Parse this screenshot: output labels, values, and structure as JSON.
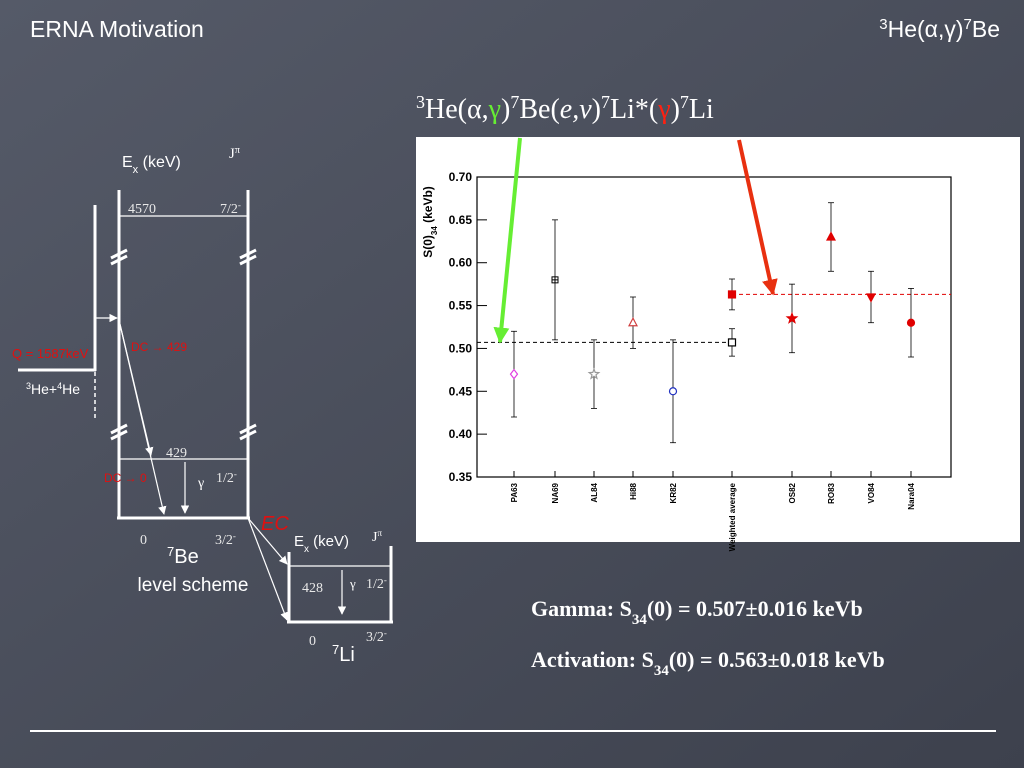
{
  "header": {
    "title": "ERNA Motivation",
    "reaction": [
      "3",
      "He(α,γ)",
      "7",
      "Be"
    ]
  },
  "reaction_chain": [
    "3",
    "He(α,",
    "γ",
    ")",
    "7",
    "Be(",
    "e,ν",
    ")",
    "7",
    "Li*(",
    "γ",
    ")",
    "7",
    "Li"
  ],
  "level_scheme_7be": {
    "ex_label": [
      "E",
      "x",
      " (keV)"
    ],
    "jpi_label": [
      "J",
      "π"
    ],
    "levels": [
      {
        "energy": "4570",
        "jpi": [
          "7/2",
          "-"
        ]
      },
      {
        "energy": "429",
        "jpi": [
          "1/2",
          "-"
        ]
      },
      {
        "energy": "0",
        "jpi": [
          "3/2",
          "-"
        ]
      }
    ],
    "q_value": "Q = 1587keV",
    "entrance": [
      "3",
      "He+",
      "4",
      "He"
    ],
    "transitions": [
      "DC → 429",
      "DC → 0"
    ],
    "gamma": "γ",
    "nucleus": [
      "7",
      "Be"
    ],
    "caption": "level scheme",
    "decay": "EC"
  },
  "level_scheme_7li": {
    "ex_label": [
      "E",
      "x",
      " (keV)"
    ],
    "jpi_label": [
      "J",
      "π"
    ],
    "levels": [
      {
        "energy": "428",
        "jpi": [
          "1/2",
          "-"
        ]
      },
      {
        "energy": "0",
        "jpi": [
          "3/2",
          "-"
        ]
      }
    ],
    "gamma": "γ",
    "nucleus": [
      "7",
      "Li"
    ]
  },
  "results": [
    [
      "Gamma: S",
      "34",
      "(0) = 0.507±0.016 keVb"
    ],
    [
      "Activation: S",
      "34",
      "(0) = 0.563±0.018 keVb"
    ]
  ],
  "chart_data": {
    "type": "errorbar",
    "y_label": [
      "S(0)",
      "34",
      " (keVb)"
    ],
    "categories": [
      "PA63",
      "NA69",
      "AL84",
      "Hi88",
      "KR82",
      "Weighted average",
      "OS82",
      "RO83",
      "VO84",
      "Nara04"
    ],
    "ylim": [
      0.35,
      0.7
    ],
    "yticks": [
      0.35,
      {
        "value": 0.4,
        "label": "0.40"
      },
      0.45,
      {
        "value": 0.5,
        "label": "0.50"
      },
      0.55,
      {
        "value": 0.6,
        "label": "0.60"
      },
      0.65,
      {
        "value": 0.7,
        "label": "0.70"
      }
    ],
    "series": [
      {
        "color": "#000000",
        "filled": false,
        "values": [
          0.47,
          0.58,
          0.47,
          0.53,
          0.45,
          0.507,
          null,
          null,
          null,
          null
        ],
        "errors": [
          0.05,
          0.07,
          0.04,
          0.03,
          0.06,
          0.016,
          null,
          null,
          null,
          null
        ],
        "colors": [
          "#e040e0",
          "#000000",
          "#999999",
          "#d04040",
          "#2030c0",
          "#000000",
          null,
          null,
          null,
          null
        ],
        "markers": [
          "diamond",
          "cross-square",
          "star",
          "triangle",
          "circle",
          "square",
          null,
          null,
          null,
          null
        ]
      },
      {
        "color": "#e00000",
        "filled": true,
        "values": [
          null,
          null,
          null,
          null,
          null,
          0.563,
          0.535,
          0.63,
          0.56,
          0.53
        ],
        "errors": [
          null,
          null,
          null,
          null,
          null,
          0.018,
          0.04,
          0.04,
          0.03,
          0.04
        ],
        "colors": [
          null,
          null,
          null,
          null,
          null,
          "#e00000",
          "#e00000",
          "#e00000",
          "#e00000",
          "#e00000"
        ],
        "markers": [
          null,
          null,
          null,
          null,
          null,
          "square",
          "star",
          "triangle",
          "triangle-down",
          "circle"
        ]
      }
    ]
  }
}
